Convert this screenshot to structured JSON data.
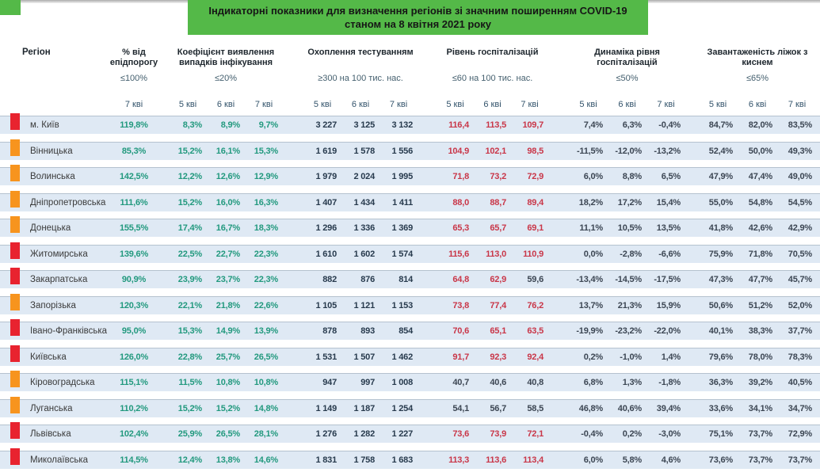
{
  "page_title": {
    "line1": "Індикаторні показники для визначення регіонів зі значним поширенням COVID-19",
    "line2": "станом на 8 квітня 2021 року"
  },
  "table": {
    "region_header": "Регіон",
    "groups": [
      {
        "id": "epid",
        "title": "% від епідпорогу",
        "threshold": "≤100%",
        "dates": [
          "7 кві"
        ]
      },
      {
        "id": "coef",
        "title": "Коефіцієнт виявлення випадків інфікування",
        "threshold": "≤20%",
        "dates": [
          "5 кві",
          "6 кві",
          "7 кві"
        ]
      },
      {
        "id": "test",
        "title": "Охоплення тестуванням",
        "threshold": "≥300 на 100 тис. нас.",
        "dates": [
          "5 кві",
          "6 кві",
          "7 кві"
        ]
      },
      {
        "id": "hosp",
        "title": "Рівень госпіталізацій",
        "threshold": "≤60 на 100 тис. нас.",
        "dates": [
          "5 кві",
          "6 кві",
          "7 кві"
        ]
      },
      {
        "id": "dyn",
        "title": "Динаміка рівня госпіталізацій",
        "threshold": "≤50%",
        "dates": [
          "5 кві",
          "6 кві",
          "7 кві"
        ]
      },
      {
        "id": "beds",
        "title": "Завантаженість ліжок з киснем",
        "threshold": "≤65%",
        "dates": [
          "5 кві",
          "6 кві",
          "7 кві"
        ]
      }
    ],
    "hosp_red_above": 60,
    "rows": [
      {
        "marker": "red",
        "region": "м. Київ",
        "epid": "119,8%",
        "coef": [
          "8,3%",
          "8,9%",
          "9,7%"
        ],
        "test": [
          "3 227",
          "3 125",
          "3 132"
        ],
        "hosp": [
          "116,4",
          "113,5",
          "109,7"
        ],
        "dyn": [
          "7,4%",
          "6,3%",
          "-0,4%"
        ],
        "beds": [
          "84,7%",
          "82,0%",
          "83,5%"
        ]
      },
      {
        "marker": "orange",
        "region": "Вінницька",
        "epid": "85,3%",
        "coef": [
          "15,2%",
          "16,1%",
          "15,3%"
        ],
        "test": [
          "1 619",
          "1 578",
          "1 556"
        ],
        "hosp": [
          "104,9",
          "102,1",
          "98,5"
        ],
        "dyn": [
          "-11,5%",
          "-12,0%",
          "-13,2%"
        ],
        "beds": [
          "52,4%",
          "50,0%",
          "49,3%"
        ]
      },
      {
        "marker": "orange",
        "region": "Волинська",
        "epid": "142,5%",
        "coef": [
          "12,2%",
          "12,6%",
          "12,9%"
        ],
        "test": [
          "1 979",
          "2 024",
          "1 995"
        ],
        "hosp": [
          "71,8",
          "73,2",
          "72,9"
        ],
        "dyn": [
          "6,0%",
          "8,8%",
          "6,5%"
        ],
        "beds": [
          "47,9%",
          "47,4%",
          "49,0%"
        ]
      },
      {
        "marker": "orange",
        "region": "Дніпропетровська",
        "epid": "111,6%",
        "coef": [
          "15,2%",
          "16,0%",
          "16,3%"
        ],
        "test": [
          "1 407",
          "1 434",
          "1 411"
        ],
        "hosp": [
          "88,0",
          "88,7",
          "89,4"
        ],
        "dyn": [
          "18,2%",
          "17,2%",
          "15,4%"
        ],
        "beds": [
          "55,0%",
          "54,8%",
          "54,5%"
        ]
      },
      {
        "marker": "orange",
        "region": "Донецька",
        "epid": "155,5%",
        "coef": [
          "17,4%",
          "16,7%",
          "18,3%"
        ],
        "test": [
          "1 296",
          "1 336",
          "1 369"
        ],
        "hosp": [
          "65,3",
          "65,7",
          "69,1"
        ],
        "dyn": [
          "11,1%",
          "10,5%",
          "13,5%"
        ],
        "beds": [
          "41,8%",
          "42,6%",
          "42,9%"
        ]
      },
      {
        "marker": "red",
        "region": "Житомирська",
        "epid": "139,6%",
        "coef": [
          "22,5%",
          "22,7%",
          "22,3%"
        ],
        "test": [
          "1 610",
          "1 602",
          "1 574"
        ],
        "hosp": [
          "115,6",
          "113,0",
          "110,9"
        ],
        "dyn": [
          "0,0%",
          "-2,8%",
          "-6,6%"
        ],
        "beds": [
          "75,9%",
          "71,8%",
          "70,5%"
        ]
      },
      {
        "marker": "red",
        "region": "Закарпатська",
        "epid": "90,9%",
        "coef": [
          "23,9%",
          "23,7%",
          "22,3%"
        ],
        "test": [
          "882",
          "876",
          "814"
        ],
        "hosp": [
          "64,8",
          "62,9",
          "59,6"
        ],
        "dyn": [
          "-13,4%",
          "-14,5%",
          "-17,5%"
        ],
        "beds": [
          "47,3%",
          "47,7%",
          "45,7%"
        ]
      },
      {
        "marker": "orange",
        "region": "Запорізька",
        "epid": "120,3%",
        "coef": [
          "22,1%",
          "21,8%",
          "22,6%"
        ],
        "test": [
          "1 105",
          "1 121",
          "1 153"
        ],
        "hosp": [
          "73,8",
          "77,4",
          "76,2"
        ],
        "dyn": [
          "13,7%",
          "21,3%",
          "15,9%"
        ],
        "beds": [
          "50,6%",
          "51,2%",
          "52,0%"
        ]
      },
      {
        "marker": "red",
        "region": "Івано-Франківська",
        "epid": "95,0%",
        "coef": [
          "15,3%",
          "14,9%",
          "13,9%"
        ],
        "test": [
          "878",
          "893",
          "854"
        ],
        "hosp": [
          "70,6",
          "65,1",
          "63,5"
        ],
        "dyn": [
          "-19,9%",
          "-23,2%",
          "-22,0%"
        ],
        "beds": [
          "40,1%",
          "38,3%",
          "37,7%"
        ]
      },
      {
        "marker": "red",
        "region": "Київська",
        "epid": "126,0%",
        "coef": [
          "22,8%",
          "25,7%",
          "26,5%"
        ],
        "test": [
          "1 531",
          "1 507",
          "1 462"
        ],
        "hosp": [
          "91,7",
          "92,3",
          "92,4"
        ],
        "dyn": [
          "0,2%",
          "-1,0%",
          "1,4%"
        ],
        "beds": [
          "79,6%",
          "78,0%",
          "78,3%"
        ]
      },
      {
        "marker": "orange",
        "region": "Кіровоградська",
        "epid": "115,1%",
        "coef": [
          "11,5%",
          "10,8%",
          "10,8%"
        ],
        "test": [
          "947",
          "997",
          "1 008"
        ],
        "hosp": [
          "40,7",
          "40,6",
          "40,8"
        ],
        "dyn": [
          "6,8%",
          "1,3%",
          "-1,8%"
        ],
        "beds": [
          "36,3%",
          "39,2%",
          "40,5%"
        ]
      },
      {
        "marker": "orange",
        "region": "Луганська",
        "epid": "110,2%",
        "coef": [
          "15,2%",
          "15,2%",
          "14,8%"
        ],
        "test": [
          "1 149",
          "1 187",
          "1 254"
        ],
        "hosp": [
          "54,1",
          "56,7",
          "58,5"
        ],
        "dyn": [
          "46,8%",
          "40,6%",
          "39,4%"
        ],
        "beds": [
          "33,6%",
          "34,1%",
          "34,7%"
        ]
      },
      {
        "marker": "red",
        "region": "Львівська",
        "epid": "102,4%",
        "coef": [
          "25,9%",
          "26,5%",
          "28,1%"
        ],
        "test": [
          "1 276",
          "1 282",
          "1 227"
        ],
        "hosp": [
          "73,6",
          "73,9",
          "72,1"
        ],
        "dyn": [
          "-0,4%",
          "0,2%",
          "-3,0%"
        ],
        "beds": [
          "75,1%",
          "73,7%",
          "72,9%"
        ]
      },
      {
        "marker": "red",
        "region": "Миколаївська",
        "epid": "114,5%",
        "coef": [
          "12,4%",
          "13,8%",
          "14,6%"
        ],
        "test": [
          "1 831",
          "1 758",
          "1 683"
        ],
        "hosp": [
          "113,3",
          "113,6",
          "113,4"
        ],
        "dyn": [
          "6,0%",
          "5,8%",
          "4,6%"
        ],
        "beds": [
          "73,6%",
          "73,7%",
          "73,7%"
        ]
      }
    ]
  },
  "colors": {
    "band_green": "#54b948",
    "marker_red": "#e8232f",
    "marker_orange": "#f7941e",
    "teal": "#22997e",
    "navy": "#273a4d",
    "red": "#c93648",
    "dark": "#3c4653",
    "row_bg": "#dfe9f4"
  }
}
